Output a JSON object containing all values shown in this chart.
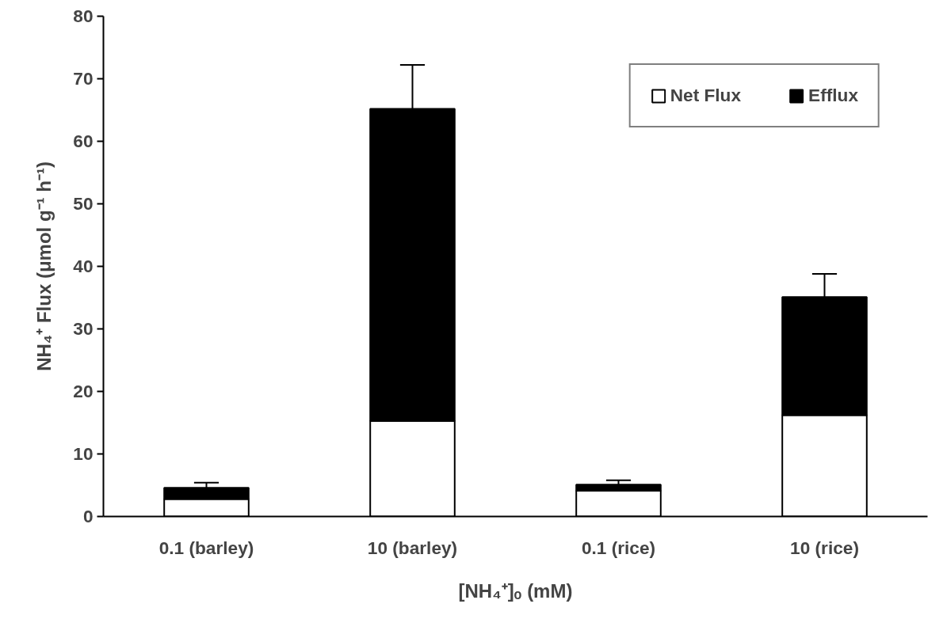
{
  "chart_data": {
    "type": "bar",
    "stacked": true,
    "categories": [
      "0.1 (barley)",
      "10 (barley)",
      "0.1 (rice)",
      "10 (rice)"
    ],
    "series": [
      {
        "name": "Net Flux",
        "color": "#ffffff",
        "values": [
          2.8,
          15.3,
          4.1,
          16.2
        ]
      },
      {
        "name": "Efflux",
        "color": "#000000",
        "values": [
          1.8,
          49.9,
          1.0,
          18.9
        ],
        "errors": [
          0.8,
          7.0,
          0.7,
          3.7
        ]
      }
    ],
    "xlabel": "[NH₄⁺]ₒ (mM)",
    "ylabel": "NH₄⁺ Flux (μmol g⁻¹ h⁻¹)",
    "ylim": [
      0,
      80
    ],
    "yticks": [
      0,
      10,
      20,
      30,
      40,
      50,
      60,
      70,
      80
    ],
    "grid": false,
    "legend": "top right"
  }
}
